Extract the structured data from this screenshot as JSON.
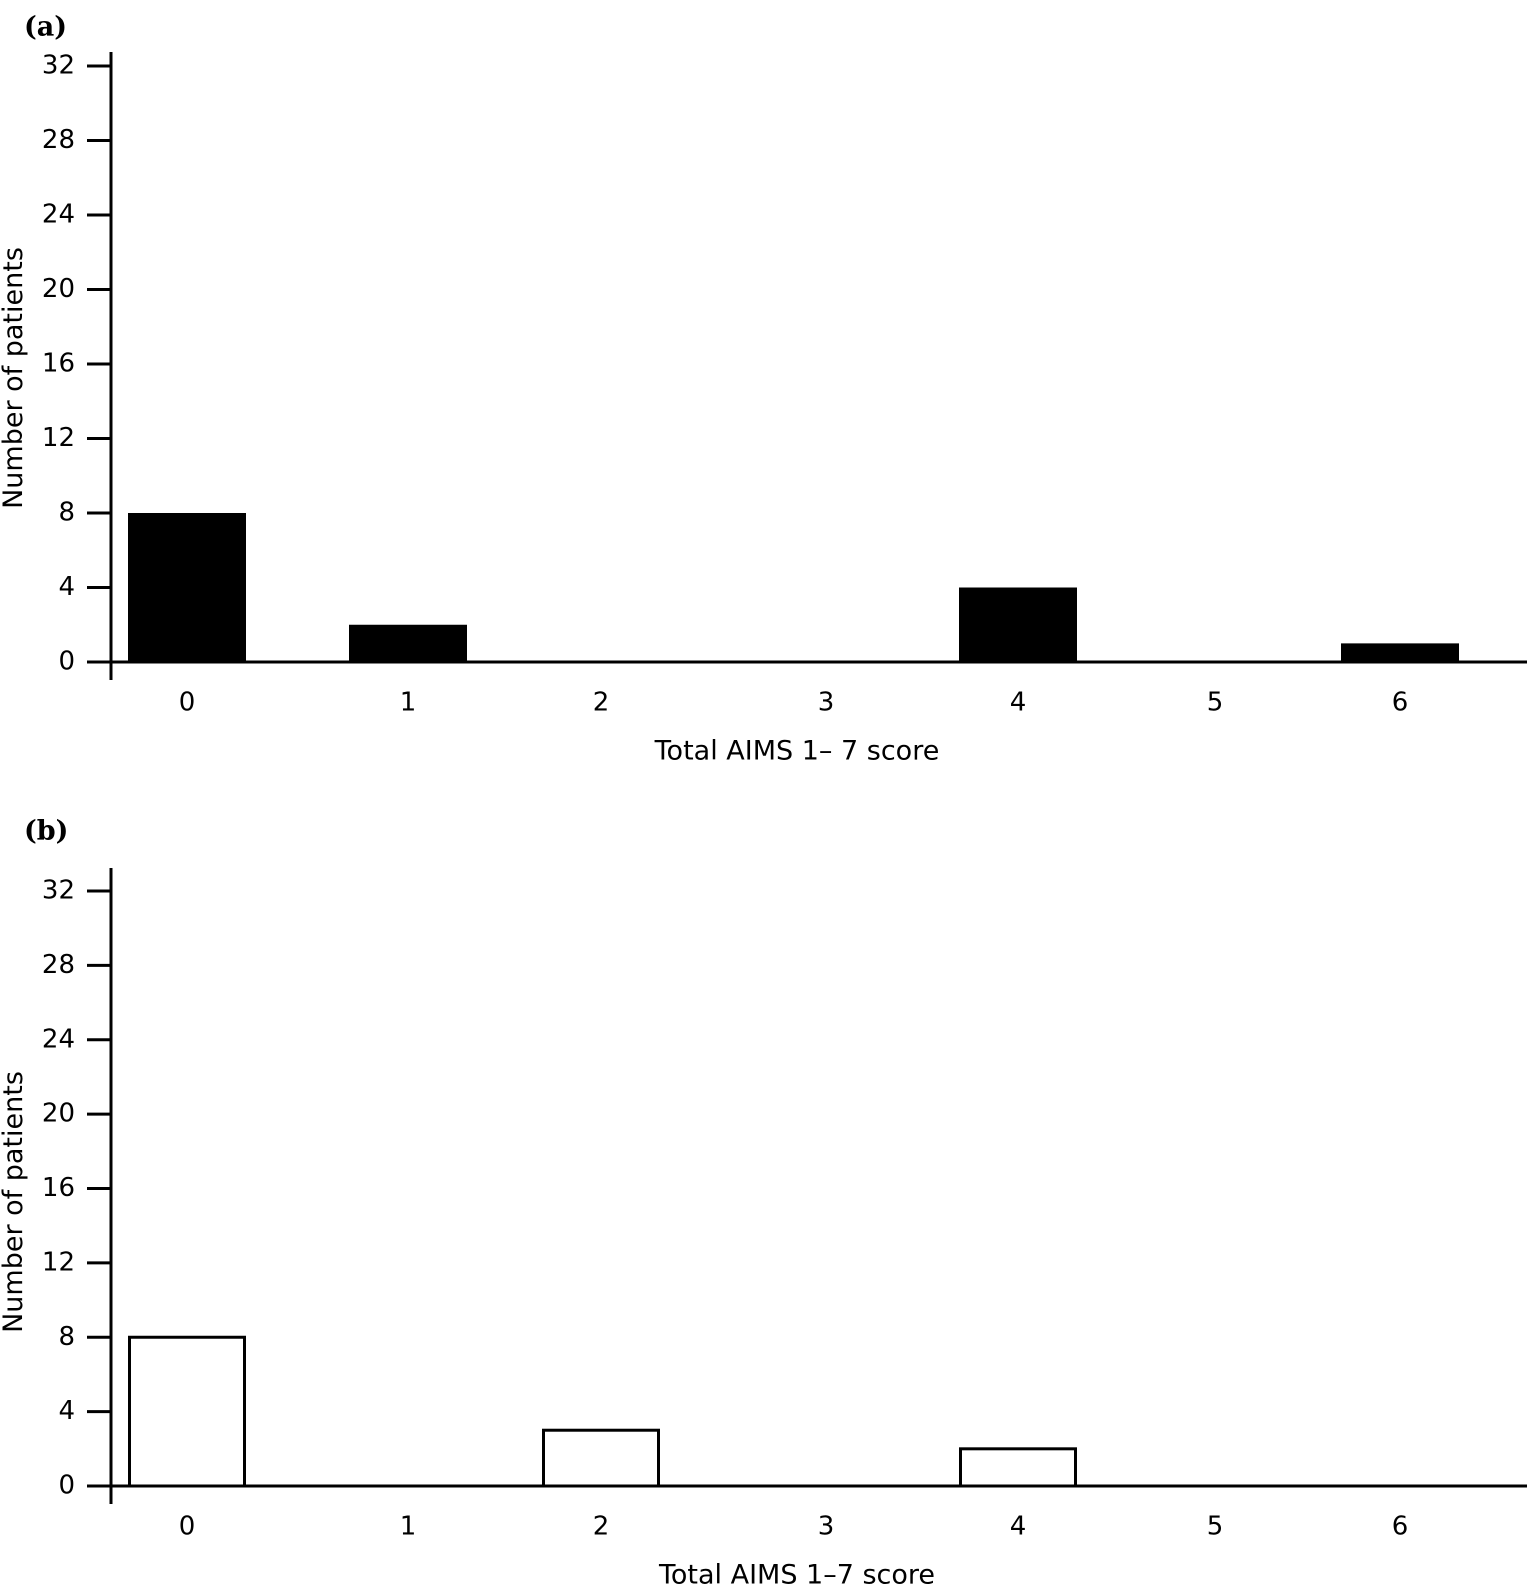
{
  "chart_data": [
    {
      "type": "bar",
      "panel_label": "(a)",
      "categories": [
        "0",
        "1",
        "2",
        "3",
        "4",
        "5",
        "6"
      ],
      "values": [
        8,
        2,
        0,
        0,
        4,
        0,
        1
      ],
      "bar_style": "filled",
      "bar_color": "#000000",
      "xlabel": "Total AIMS 1– 7 score",
      "ylabel": "Number of patients",
      "yticks": [
        0,
        4,
        8,
        12,
        16,
        20,
        24,
        28,
        32
      ],
      "ylim": [
        0,
        32
      ],
      "grid": false,
      "legend": "none"
    },
    {
      "type": "bar",
      "panel_label": "(b)",
      "categories": [
        "0",
        "1",
        "2",
        "3",
        "4",
        "5",
        "6"
      ],
      "values": [
        8,
        0,
        3,
        0,
        2,
        0,
        0
      ],
      "bar_style": "outline",
      "bar_color": "#000000",
      "xlabel": "Total AIMS 1–7 score",
      "ylabel": "Number of patients",
      "yticks": [
        0,
        4,
        8,
        12,
        16,
        20,
        24,
        28,
        32
      ],
      "ylim": [
        0,
        32
      ],
      "grid": false,
      "legend": "none"
    }
  ]
}
